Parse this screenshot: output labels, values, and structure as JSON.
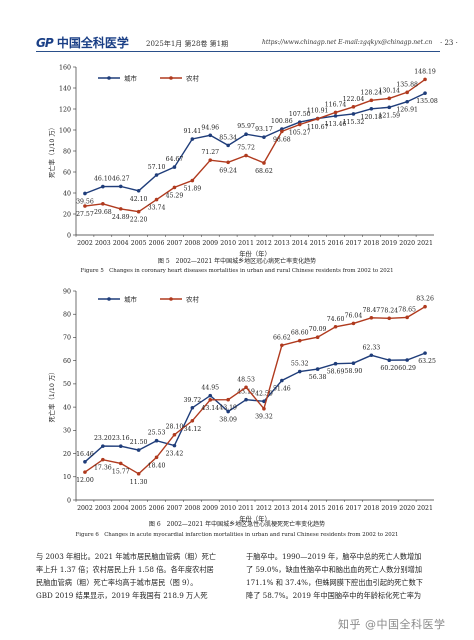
{
  "header": {
    "logo_mark": "GP",
    "logo_text": "中国全科医学",
    "issue": "2025年1月  第28卷  第1期",
    "urls": "https://www.chinagp.net   E-mail:zgqkyx@chinagp.net.cn",
    "page_number": "· 23 ·"
  },
  "figure5": {
    "caption_cn": "图 5　2002—2021 年中国城乡地区冠心病死亡率变化趋势",
    "caption_en": "Figure 5　Changes in coronary heart diseases mortalities in urban and rural Chinese residents from 2002 to 2021"
  },
  "figure6": {
    "caption_cn": "图 6　2002—2021 年中国城乡地区急性心肌梗死死亡率变化趋势",
    "caption_en": "Figure 6　Changes in acute myocardial infarction mortalities in urban and rural Chinese residents from 2002 to 2021"
  },
  "body_text": {
    "left": [
      "与 2003 年相比。2021 年城市居民脑血管病（粗）死亡",
      "率上升 1.37 倍；农村居民上升 1.58 倍。各年度农村居",
      "民脑血管病（粗）死亡率均高于城市居民（图 9）。",
      "GBD 2019 结果显示，2019 年我国有 218.9 万人死"
    ],
    "right": [
      "于脑卒中。1990—2019 年，脑卒中总的死亡人数增加",
      "了 59.0%，缺血性脑卒中和脑出血的死亡人数分别增加",
      "171.1% 和 37.4%，但蛛网膜下腔出血引起的死亡数下",
      "降了 58.7%。2019 年中国脑卒中的年龄标化死亡率为"
    ]
  },
  "watermark": "知乎 @中国全科医学",
  "colors": {
    "urban": "#1f3d7a",
    "rural": "#b03a1e"
  },
  "chart_data": [
    {
      "type": "line",
      "x": [
        2002,
        2003,
        2004,
        2005,
        2006,
        2007,
        2008,
        2009,
        2010,
        2011,
        2012,
        2013,
        2014,
        2015,
        2016,
        2017,
        2018,
        2019,
        2020,
        2021
      ],
      "series": [
        {
          "name": "城市",
          "values": [
            39.56,
            46.1,
            46.27,
            42.1,
            57.1,
            64.67,
            91.41,
            94.96,
            85.34,
            95.97,
            93.17,
            100.86,
            107.5,
            110.91,
            113.46,
            115.32,
            120.18,
            121.59,
            126.91,
            135.08
          ]
        },
        {
          "name": "农村",
          "values": [
            27.57,
            29.68,
            24.89,
            22.2,
            33.74,
            45.29,
            51.89,
            71.27,
            69.24,
            75.72,
            68.62,
            98.68,
            105.27,
            110.67,
            116.74,
            122.04,
            128.24,
            130.14,
            135.88,
            148.19
          ]
        }
      ],
      "xlabel": "年份（年）",
      "ylabel": "死亡率（1/10 万）",
      "ylim": [
        0,
        160
      ],
      "yticks": [
        0,
        20,
        40,
        60,
        80,
        100,
        120,
        140,
        160
      ],
      "legend": "top-left",
      "grid": false
    },
    {
      "type": "line",
      "x": [
        2002,
        2003,
        2004,
        2005,
        2006,
        2007,
        2008,
        2009,
        2010,
        2011,
        2012,
        2013,
        2014,
        2015,
        2016,
        2017,
        2018,
        2019,
        2020,
        2021
      ],
      "series": [
        {
          "name": "城市",
          "values": [
            16.46,
            23.2,
            23.16,
            21.5,
            25.53,
            23.42,
            39.72,
            44.95,
            38.09,
            43.19,
            42.5,
            51.46,
            55.32,
            56.38,
            58.69,
            58.9,
            62.33,
            60.2,
            60.29,
            63.25
          ]
        },
        {
          "name": "农村",
          "values": [
            12.0,
            17.36,
            15.77,
            11.3,
            18.4,
            28.1,
            34.12,
            43.14,
            43.19,
            48.53,
            39.32,
            66.62,
            68.6,
            70.09,
            74.6,
            76.04,
            78.47,
            78.24,
            78.65,
            83.26
          ]
        }
      ],
      "xlabel": "年份（年）",
      "ylabel": "死亡率（1/10 万）",
      "ylim": [
        0,
        90
      ],
      "yticks": [
        0,
        10,
        20,
        30,
        40,
        50,
        60,
        70,
        80,
        90
      ],
      "legend": "top-left",
      "grid": false
    }
  ]
}
